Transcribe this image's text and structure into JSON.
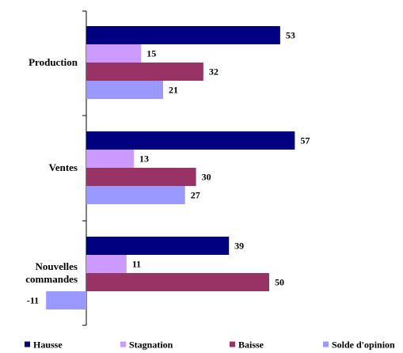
{
  "chart_data": {
    "type": "bar",
    "orientation": "horizontal",
    "categories": [
      "Production",
      "Ventes",
      "Nouvelles commandes"
    ],
    "category_lines": [
      [
        "Production"
      ],
      [
        "Ventes"
      ],
      [
        "Nouvelles",
        "commandes"
      ]
    ],
    "series": [
      {
        "name": "Hausse",
        "color": "#000080",
        "values": [
          53,
          57,
          39
        ]
      },
      {
        "name": "Stagnation",
        "color": "#CC99FF",
        "values": [
          15,
          13,
          11
        ]
      },
      {
        "name": "Baisse",
        "color": "#993366",
        "values": [
          32,
          30,
          50
        ]
      },
      {
        "name": "Solde d'opinion",
        "color": "#9999FF",
        "values": [
          21,
          27,
          -11
        ]
      }
    ],
    "xlim": [
      -11,
      75
    ],
    "grid": false,
    "legend": "bottom"
  }
}
